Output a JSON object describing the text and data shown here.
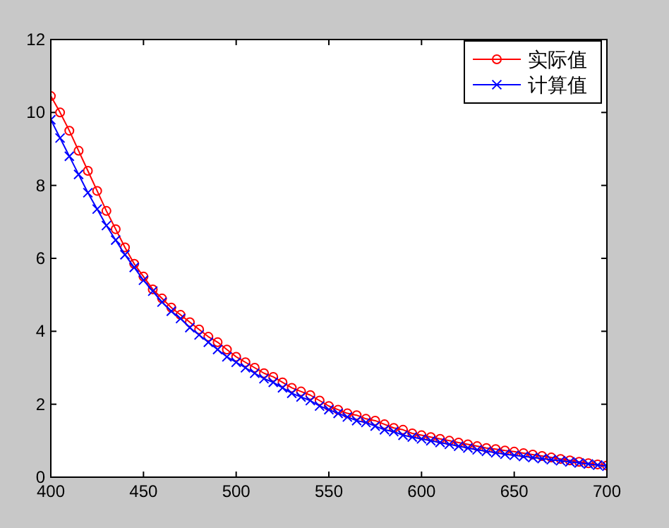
{
  "chart_data": {
    "type": "line",
    "xlim": [
      400,
      700
    ],
    "ylim": [
      0,
      12
    ],
    "xticks": [
      400,
      450,
      500,
      550,
      600,
      650,
      700
    ],
    "yticks": [
      0,
      2,
      4,
      6,
      8,
      10,
      12
    ],
    "legend": "top right",
    "line_style": "solid",
    "grid": false,
    "x": [
      400,
      405,
      410,
      415,
      420,
      425,
      430,
      435,
      440,
      445,
      450,
      455,
      460,
      465,
      470,
      475,
      480,
      485,
      490,
      495,
      500,
      505,
      510,
      515,
      520,
      525,
      530,
      535,
      540,
      545,
      550,
      555,
      560,
      565,
      570,
      575,
      580,
      585,
      590,
      595,
      600,
      605,
      610,
      615,
      620,
      625,
      630,
      635,
      640,
      645,
      650,
      655,
      660,
      665,
      670,
      675,
      680,
      685,
      690,
      695,
      700
    ],
    "series": [
      {
        "name": "实际值",
        "color": "#ff0000",
        "marker": "circle",
        "values": [
          10.45,
          10.0,
          9.5,
          8.95,
          8.4,
          7.85,
          7.3,
          6.8,
          6.3,
          5.85,
          5.5,
          5.15,
          4.9,
          4.65,
          4.45,
          4.25,
          4.05,
          3.85,
          3.7,
          3.5,
          3.3,
          3.15,
          3.0,
          2.85,
          2.75,
          2.6,
          2.45,
          2.35,
          2.25,
          2.1,
          1.95,
          1.85,
          1.75,
          1.7,
          1.6,
          1.55,
          1.45,
          1.35,
          1.3,
          1.2,
          1.15,
          1.1,
          1.05,
          1.0,
          0.95,
          0.9,
          0.85,
          0.8,
          0.77,
          0.73,
          0.7,
          0.66,
          0.62,
          0.58,
          0.54,
          0.5,
          0.46,
          0.42,
          0.38,
          0.35,
          0.32
        ]
      },
      {
        "name": "计算值",
        "color": "#0000ff",
        "marker": "cross",
        "values": [
          9.8,
          9.3,
          8.8,
          8.3,
          7.8,
          7.35,
          6.9,
          6.5,
          6.1,
          5.75,
          5.4,
          5.1,
          4.8,
          4.55,
          4.35,
          4.1,
          3.9,
          3.7,
          3.5,
          3.3,
          3.15,
          3.0,
          2.85,
          2.7,
          2.6,
          2.45,
          2.3,
          2.2,
          2.1,
          1.95,
          1.85,
          1.75,
          1.65,
          1.55,
          1.5,
          1.4,
          1.3,
          1.25,
          1.15,
          1.1,
          1.05,
          1.0,
          0.95,
          0.9,
          0.85,
          0.8,
          0.75,
          0.71,
          0.67,
          0.63,
          0.6,
          0.57,
          0.54,
          0.51,
          0.48,
          0.45,
          0.42,
          0.39,
          0.36,
          0.33,
          0.3
        ]
      }
    ]
  }
}
